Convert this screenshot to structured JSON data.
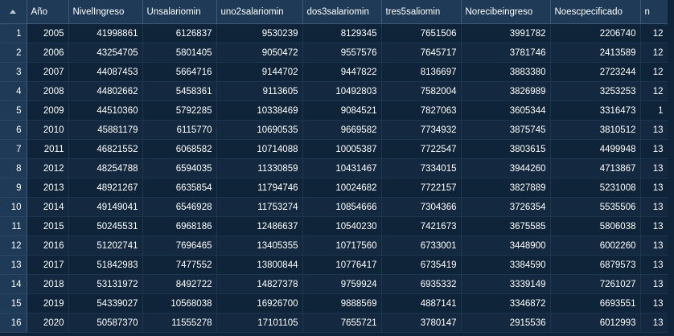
{
  "table": {
    "columns": [
      "Año",
      "NivelIngreso",
      "Unsalariomin",
      "uno2salariomin",
      "dos3salariomin",
      "tres5saliomin",
      "Norecibeingreso",
      "Noescpecificado",
      "n"
    ],
    "rows": [
      {
        "rownum": "1",
        "cells": [
          "2005",
          "41998861",
          "6126837",
          "9530239",
          "8129345",
          "7651506",
          "3991782",
          "2206740",
          "12"
        ]
      },
      {
        "rownum": "2",
        "cells": [
          "2006",
          "43254705",
          "5801405",
          "9050472",
          "9557576",
          "7645717",
          "3781746",
          "2413589",
          "12"
        ]
      },
      {
        "rownum": "3",
        "cells": [
          "2007",
          "44087453",
          "5664716",
          "9144702",
          "9447822",
          "8136697",
          "3883380",
          "2723244",
          "12"
        ]
      },
      {
        "rownum": "4",
        "cells": [
          "2008",
          "44802662",
          "5458361",
          "9113605",
          "10492803",
          "7582004",
          "3826989",
          "3253253",
          "12"
        ]
      },
      {
        "rownum": "5",
        "cells": [
          "2009",
          "44510360",
          "5792285",
          "10338469",
          "9084521",
          "7827063",
          "3605344",
          "3316473",
          "1"
        ]
      },
      {
        "rownum": "6",
        "cells": [
          "2010",
          "45881179",
          "6115770",
          "10690535",
          "9669582",
          "7734932",
          "3875745",
          "3810512",
          "13"
        ]
      },
      {
        "rownum": "7",
        "cells": [
          "2011",
          "46821552",
          "6068582",
          "10714088",
          "10005387",
          "7722547",
          "3803615",
          "4499948",
          "13"
        ]
      },
      {
        "rownum": "8",
        "cells": [
          "2012",
          "48254788",
          "6594035",
          "11330859",
          "10431467",
          "7334015",
          "3944260",
          "4713867",
          "13"
        ]
      },
      {
        "rownum": "9",
        "cells": [
          "2013",
          "48921267",
          "6635854",
          "11794746",
          "10024682",
          "7722157",
          "3827889",
          "5231008",
          "13"
        ]
      },
      {
        "rownum": "10",
        "cells": [
          "2014",
          "49149041",
          "6546928",
          "11753274",
          "10854666",
          "7304366",
          "3726354",
          "5535506",
          "13"
        ]
      },
      {
        "rownum": "11",
        "cells": [
          "2015",
          "50245531",
          "6968186",
          "12486637",
          "10540230",
          "7421673",
          "3675585",
          "5806038",
          "13"
        ]
      },
      {
        "rownum": "12",
        "cells": [
          "2016",
          "51202741",
          "7696465",
          "13405355",
          "10717560",
          "6733001",
          "3448900",
          "6002260",
          "13"
        ]
      },
      {
        "rownum": "13",
        "cells": [
          "2017",
          "51842983",
          "7477552",
          "13800844",
          "10776417",
          "6735419",
          "3384590",
          "6879573",
          "13"
        ]
      },
      {
        "rownum": "14",
        "cells": [
          "2018",
          "53131972",
          "8492722",
          "14827378",
          "9759924",
          "6935332",
          "3339149",
          "7261027",
          "13"
        ]
      },
      {
        "rownum": "15",
        "cells": [
          "2019",
          "54339027",
          "10568038",
          "16926700",
          "9888569",
          "4887141",
          "3346872",
          "6693551",
          "13"
        ]
      },
      {
        "rownum": "16",
        "cells": [
          "2020",
          "50587370",
          "11555278",
          "17101105",
          "7655721",
          "3780147",
          "2915536",
          "6012993",
          "13"
        ]
      }
    ]
  },
  "icons": {
    "sort": "sort-ascending-icon"
  },
  "colors": {
    "background": "#0f2438",
    "header_bg": "#1e3a56",
    "row_alt": "#14293f",
    "text": "#ffffff"
  }
}
